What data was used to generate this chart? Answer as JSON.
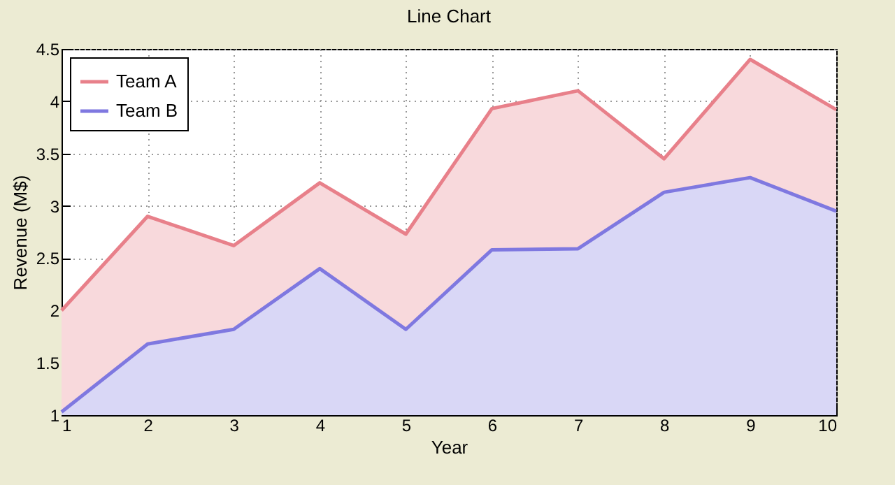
{
  "chart_data": {
    "type": "area",
    "title": "Line Chart",
    "xlabel": "Year",
    "ylabel": "Revenue (M$)",
    "x": [
      1,
      2,
      3,
      4,
      5,
      6,
      7,
      8,
      9,
      10
    ],
    "series": [
      {
        "name": "Team A",
        "color": "#e8808a",
        "values": [
          2.0,
          2.9,
          2.62,
          3.22,
          2.73,
          3.93,
          4.1,
          3.45,
          4.4,
          3.92
        ]
      },
      {
        "name": "Team B",
        "color": "#7f78e0",
        "values": [
          1.03,
          1.68,
          1.82,
          2.4,
          1.82,
          2.58,
          2.59,
          3.13,
          3.27,
          2.95
        ]
      }
    ],
    "xlim": [
      1,
      10
    ],
    "xticks": [
      1,
      2,
      3,
      4,
      5,
      6,
      7,
      8,
      9,
      10
    ],
    "ylim": [
      1,
      4.5
    ],
    "yticks": [
      1,
      1.5,
      2,
      2.5,
      3,
      3.5,
      4,
      4.5
    ],
    "grid": true,
    "legend": "top left",
    "line_style": "solid",
    "marker": "none"
  }
}
